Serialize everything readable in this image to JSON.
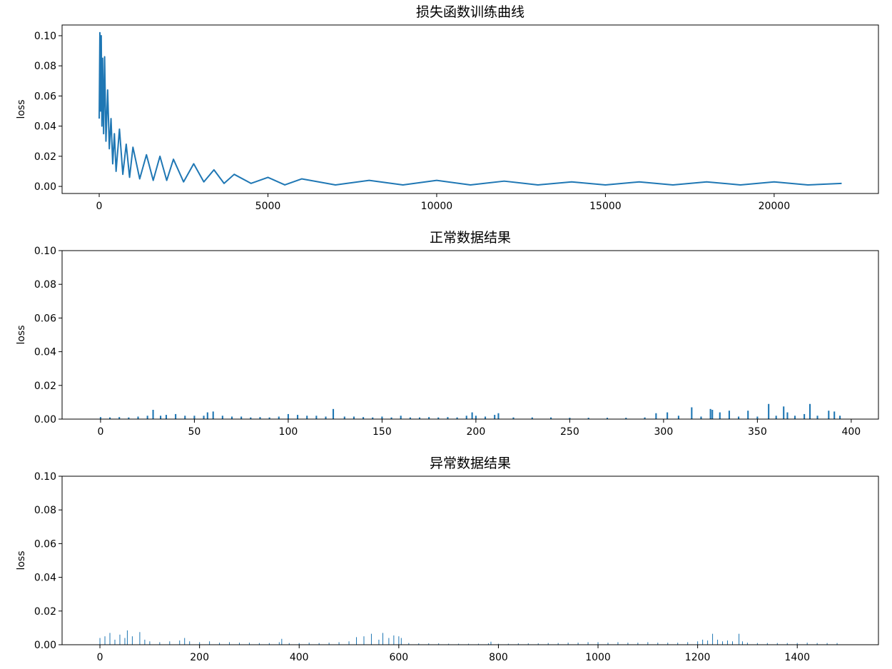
{
  "chart_data": [
    {
      "type": "line",
      "title": "损失函数训练曲线",
      "ylabel": "loss",
      "color": "#1f77b4",
      "x": [
        0,
        20,
        40,
        60,
        80,
        100,
        130,
        160,
        200,
        250,
        300,
        350,
        400,
        450,
        500,
        600,
        700,
        800,
        900,
        1000,
        1200,
        1400,
        1600,
        1800,
        2000,
        2200,
        2500,
        2800,
        3100,
        3400,
        3700,
        4000,
        4500,
        5000,
        5500,
        6000,
        7000,
        8000,
        9000,
        10000,
        11000,
        12000,
        13000,
        14000,
        15000,
        16000,
        17000,
        18000,
        19000,
        20000,
        21000,
        22000
      ],
      "values": [
        0.045,
        0.102,
        0.05,
        0.1,
        0.04,
        0.085,
        0.035,
        0.086,
        0.03,
        0.064,
        0.025,
        0.045,
        0.015,
        0.035,
        0.01,
        0.038,
        0.008,
        0.028,
        0.006,
        0.026,
        0.005,
        0.021,
        0.004,
        0.02,
        0.004,
        0.018,
        0.003,
        0.015,
        0.003,
        0.011,
        0.002,
        0.008,
        0.002,
        0.006,
        0.001,
        0.005,
        0.001,
        0.004,
        0.001,
        0.004,
        0.001,
        0.0035,
        0.001,
        0.003,
        0.001,
        0.003,
        0.001,
        0.003,
        0.001,
        0.003,
        0.001,
        0.002
      ],
      "xlim": [
        -1100,
        23090
      ],
      "xticks": [
        0,
        5000,
        10000,
        15000,
        20000
      ],
      "ylim": [
        -0.0047,
        0.1071
      ],
      "yticks": [
        {
          "value": 0,
          "label": "0.00"
        },
        {
          "value": 0.02,
          "label": "0.02"
        },
        {
          "value": 0.04,
          "label": "0.04"
        },
        {
          "value": 0.06,
          "label": "0.06"
        },
        {
          "value": 0.08,
          "label": "0.08"
        },
        {
          "value": 0.1,
          "label": "0.10"
        }
      ]
    },
    {
      "type": "bar",
      "title": "正常数据结果",
      "ylabel": "loss",
      "color": "#1f77b4",
      "x": [
        0,
        5,
        10,
        15,
        20,
        25,
        28,
        32,
        35,
        40,
        45,
        50,
        55,
        57,
        60,
        65,
        70,
        75,
        80,
        85,
        90,
        95,
        100,
        105,
        110,
        115,
        120,
        124,
        130,
        135,
        140,
        145,
        150,
        155,
        160,
        165,
        170,
        175,
        180,
        185,
        190,
        195,
        198,
        200,
        205,
        210,
        212,
        220,
        230,
        240,
        250,
        260,
        270,
        280,
        290,
        296,
        302,
        308,
        315,
        320,
        325,
        326,
        330,
        335,
        340,
        345,
        350,
        356,
        360,
        364,
        366,
        370,
        375,
        378,
        382,
        388,
        391,
        394
      ],
      "values": [
        0.0012,
        0.001,
        0.0012,
        0.001,
        0.0015,
        0.002,
        0.0055,
        0.002,
        0.0025,
        0.003,
        0.002,
        0.002,
        0.002,
        0.004,
        0.0045,
        0.002,
        0.0015,
        0.0015,
        0.001,
        0.0012,
        0.001,
        0.0015,
        0.003,
        0.0025,
        0.002,
        0.002,
        0.0015,
        0.006,
        0.0015,
        0.0015,
        0.0012,
        0.001,
        0.0015,
        0.001,
        0.002,
        0.001,
        0.001,
        0.0012,
        0.001,
        0.0012,
        0.001,
        0.002,
        0.004,
        0.002,
        0.0015,
        0.0025,
        0.0035,
        0.001,
        0.001,
        0.001,
        0.0008,
        0.0008,
        0.0008,
        0.0008,
        0.001,
        0.0035,
        0.004,
        0.002,
        0.007,
        0.0015,
        0.006,
        0.0055,
        0.004,
        0.005,
        0.0015,
        0.005,
        0.0015,
        0.009,
        0.002,
        0.0075,
        0.004,
        0.002,
        0.003,
        0.009,
        0.002,
        0.005,
        0.0045,
        0.002
      ],
      "xlim": [
        -20.5,
        414.5
      ],
      "xticks": [
        0,
        50,
        100,
        150,
        200,
        250,
        300,
        350,
        400
      ],
      "ylim": [
        0,
        0.1
      ],
      "yticks": [
        {
          "value": 0,
          "label": "0.00"
        },
        {
          "value": 0.02,
          "label": "0.02"
        },
        {
          "value": 0.04,
          "label": "0.04"
        },
        {
          "value": 0.06,
          "label": "0.06"
        },
        {
          "value": 0.08,
          "label": "0.08"
        },
        {
          "value": 0.1,
          "label": "0.10"
        }
      ]
    },
    {
      "type": "bar",
      "title": "异常数据结果",
      "ylabel": "loss",
      "color": "#1f77b4",
      "x": [
        0,
        10,
        20,
        30,
        40,
        50,
        55,
        65,
        80,
        90,
        100,
        120,
        140,
        160,
        170,
        180,
        200,
        220,
        240,
        260,
        280,
        300,
        320,
        340,
        360,
        365,
        380,
        400,
        420,
        440,
        460,
        480,
        500,
        515,
        530,
        545,
        560,
        568,
        580,
        590,
        600,
        605,
        620,
        640,
        660,
        680,
        700,
        720,
        740,
        760,
        780,
        785,
        800,
        820,
        840,
        860,
        880,
        900,
        920,
        940,
        960,
        980,
        1000,
        1020,
        1040,
        1060,
        1080,
        1100,
        1120,
        1140,
        1160,
        1180,
        1200,
        1210,
        1220,
        1230,
        1240,
        1250,
        1260,
        1270,
        1283,
        1290,
        1300,
        1320,
        1340,
        1360,
        1380,
        1400,
        1420,
        1440,
        1460,
        1480
      ],
      "values": [
        0.004,
        0.005,
        0.007,
        0.003,
        0.006,
        0.004,
        0.0085,
        0.005,
        0.0075,
        0.003,
        0.002,
        0.0015,
        0.002,
        0.0025,
        0.004,
        0.002,
        0.0015,
        0.002,
        0.0012,
        0.0015,
        0.0012,
        0.0012,
        0.001,
        0.001,
        0.0015,
        0.0035,
        0.001,
        0.001,
        0.0012,
        0.001,
        0.0012,
        0.0015,
        0.002,
        0.0045,
        0.005,
        0.0065,
        0.003,
        0.007,
        0.004,
        0.0055,
        0.005,
        0.004,
        0.001,
        0.0008,
        0.0008,
        0.0008,
        0.0006,
        0.0006,
        0.0006,
        0.0006,
        0.0008,
        0.0018,
        0.0006,
        0.0006,
        0.0008,
        0.0008,
        0.0008,
        0.001,
        0.001,
        0.0012,
        0.0012,
        0.0015,
        0.0015,
        0.0012,
        0.0015,
        0.0012,
        0.0012,
        0.0015,
        0.0012,
        0.0012,
        0.0012,
        0.0015,
        0.002,
        0.003,
        0.0025,
        0.0065,
        0.003,
        0.002,
        0.0025,
        0.002,
        0.0065,
        0.002,
        0.0012,
        0.001,
        0.001,
        0.001,
        0.001,
        0.001,
        0.0012,
        0.001,
        0.001,
        0.001
      ],
      "xlim": [
        -76,
        1563
      ],
      "xticks": [
        0,
        200,
        400,
        600,
        800,
        1000,
        1200,
        1400
      ],
      "ylim": [
        0,
        0.1
      ],
      "yticks": [
        {
          "value": 0,
          "label": "0.00"
        },
        {
          "value": 0.02,
          "label": "0.02"
        },
        {
          "value": 0.04,
          "label": "0.04"
        },
        {
          "value": 0.06,
          "label": "0.06"
        },
        {
          "value": 0.08,
          "label": "0.08"
        },
        {
          "value": 0.1,
          "label": "0.10"
        }
      ]
    }
  ]
}
